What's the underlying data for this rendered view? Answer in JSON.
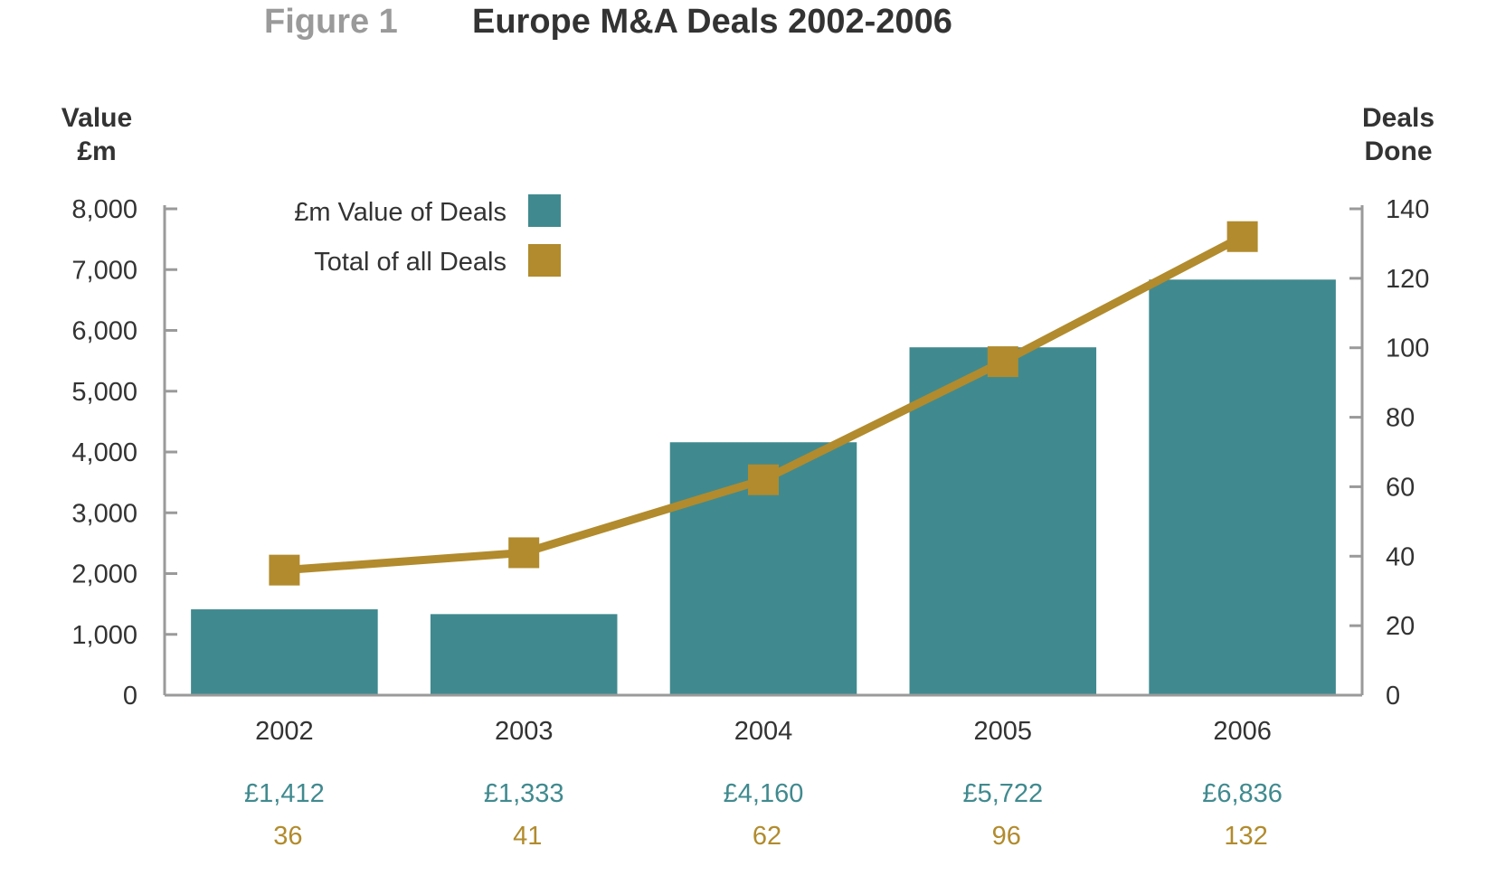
{
  "title": {
    "prefix": "Figure 1",
    "text": "Europe M&A Deals 2002-2006"
  },
  "colors": {
    "bar": "#408a8f",
    "line": "#b18b2d",
    "axis": "#9a9a9a",
    "text": "#333333"
  },
  "chart_data": {
    "type": "bar+line",
    "categories": [
      "2002",
      "2003",
      "2004",
      "2005",
      "2006"
    ],
    "series": [
      {
        "name": "£m Value of Deals",
        "type": "bar",
        "axis": "left",
        "values": [
          1412,
          1333,
          4160,
          5722,
          6836
        ],
        "value_labels": [
          "£1,412",
          "£1,333",
          "£4,160",
          "£5,722",
          "£6,836"
        ]
      },
      {
        "name": "Total of all Deals",
        "type": "line",
        "axis": "right",
        "values": [
          36,
          41,
          62,
          96,
          132
        ],
        "value_labels": [
          "36",
          "41",
          "62",
          "96",
          "132"
        ]
      }
    ],
    "y_left": {
      "label_lines": [
        "Value",
        "£m"
      ],
      "range": [
        0,
        8000
      ],
      "ticks": [
        "0",
        "1,000",
        "2,000",
        "3,000",
        "4,000",
        "5,000",
        "6,000",
        "7,000",
        "8,000"
      ]
    },
    "y_right": {
      "label_lines": [
        "Deals",
        "Done"
      ],
      "range": [
        0,
        140
      ],
      "ticks": [
        "0",
        "20",
        "40",
        "60",
        "80",
        "100",
        "120",
        "140"
      ]
    },
    "legend": {
      "position": "top-left"
    },
    "grid": false
  }
}
